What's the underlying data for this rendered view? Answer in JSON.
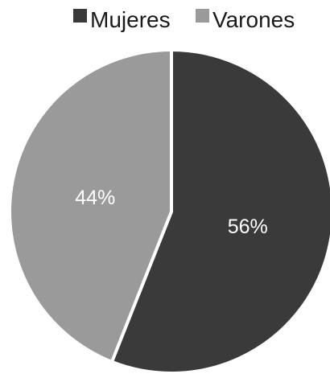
{
  "chart_data": {
    "type": "pie",
    "title": "",
    "legend_position": "top",
    "series": [
      {
        "name": "Mujeres",
        "value": 56,
        "label": "56%",
        "color": "#3a3a3a"
      },
      {
        "name": "Varones",
        "value": 44,
        "label": "44%",
        "color": "#9a9a9a"
      }
    ],
    "start_angle_deg": 0,
    "direction": "clockwise",
    "separator_color": "#ffffff"
  }
}
